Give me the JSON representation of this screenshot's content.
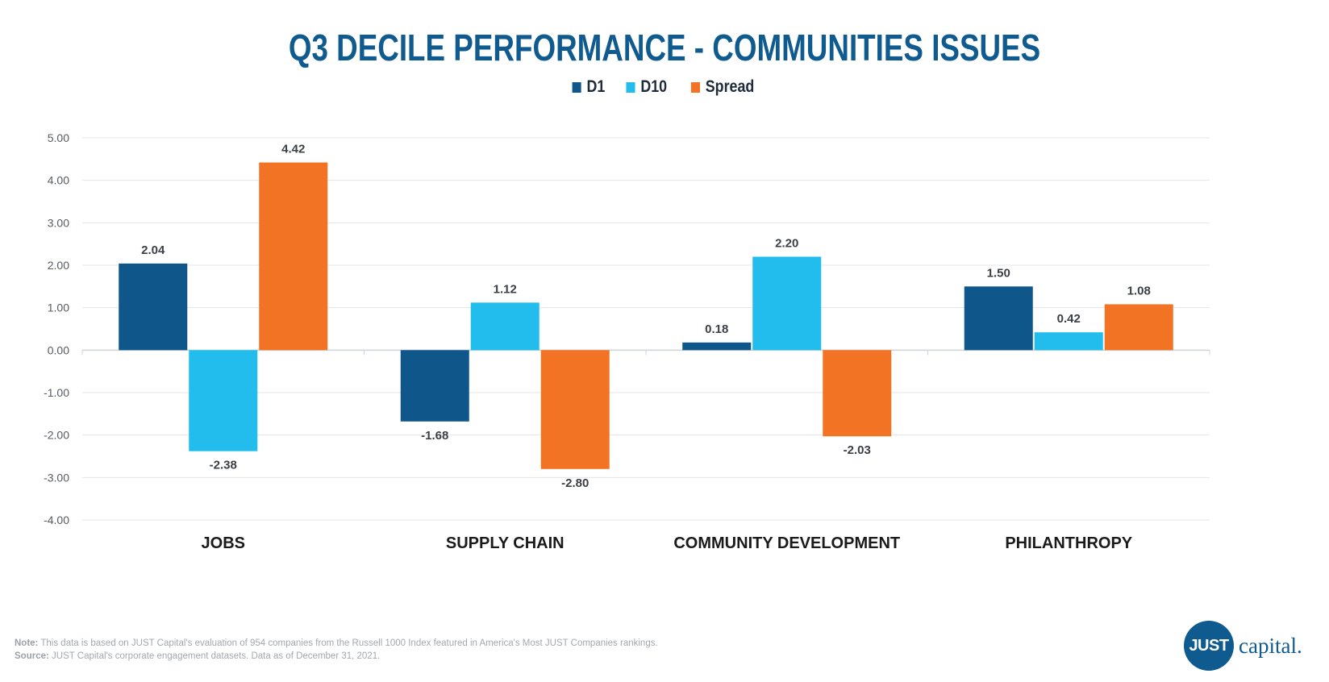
{
  "chart_data": {
    "type": "bar",
    "title": "Q3 DECILE PERFORMANCE - COMMUNITIES ISSUES",
    "categories": [
      "JOBS",
      "SUPPLY CHAIN",
      "COMMUNITY DEVELOPMENT",
      "PHILANTHROPY"
    ],
    "series": [
      {
        "name": "D1",
        "color": "#0f578b",
        "values": [
          2.04,
          -1.68,
          0.18,
          1.5
        ],
        "labels": [
          "2.04",
          "-1.68",
          "0.18",
          "1.50"
        ]
      },
      {
        "name": "D10",
        "color": "#22bded",
        "values": [
          -2.38,
          1.12,
          2.2,
          0.42
        ],
        "labels": [
          "-2.38",
          "1.12",
          "2.20",
          "0.42"
        ]
      },
      {
        "name": "Spread",
        "color": "#f37324",
        "values": [
          4.42,
          -2.8,
          -2.03,
          1.08
        ],
        "labels": [
          "4.42",
          "-2.80",
          "-2.03",
          "1.08"
        ]
      }
    ],
    "yticks": [
      "5.00",
      "4.00",
      "3.00",
      "2.00",
      "1.00",
      "0.00",
      "-1.00",
      "-2.00",
      "-3.00",
      "-4.00"
    ],
    "ylim": [
      -4,
      5
    ],
    "legend_position": "top-center",
    "grid": true,
    "xlabel": "",
    "ylabel": ""
  },
  "footer": {
    "note_label": "Note:",
    "note_text": "This data is based on JUST Capital's evaluation of 954 companies from the Russell 1000 Index featured in America's Most JUST Companies rankings.",
    "source_label": "Source:",
    "source_text": "JUST Capital's corporate engagement datasets. Data as of December 31, 2021."
  },
  "logo": {
    "mark": "JUST",
    "word": "capital.",
    "color": "#0f5a8e"
  }
}
